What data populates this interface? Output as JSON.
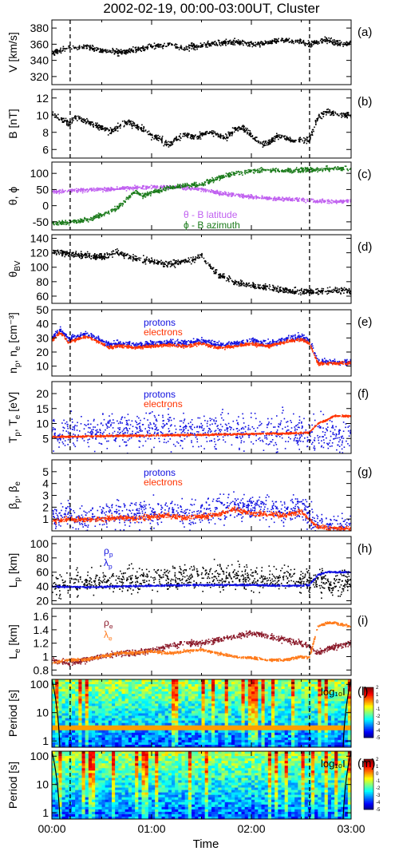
{
  "figure": {
    "title": "2002-02-19, 00:00-03:00UT, Cluster",
    "xlabel": "Time",
    "xticks": [
      "00:00",
      "01:00",
      "02:00",
      "03:00"
    ],
    "xrange_minutes": [
      0,
      180
    ],
    "vlines_minutes": [
      11,
      155
    ],
    "colors": {
      "black": "#000000",
      "purple": "#c060f0",
      "green": "#1a7a1a",
      "blue": "#1010e0",
      "red": "#ff3300",
      "maroon": "#8b1a2a",
      "orange": "#ff7a1a"
    }
  },
  "chart_data": [
    {
      "id": "a",
      "type": "scatter",
      "panel_label": "(a)",
      "ylabel": "V [km/s]",
      "ylim": [
        310,
        390
      ],
      "yticks": [
        320,
        340,
        360,
        380
      ],
      "series": [
        {
          "color": "black",
          "x": [
            0,
            5,
            10,
            15,
            20,
            25,
            30,
            35,
            40,
            45,
            50,
            55,
            60,
            65,
            70,
            75,
            80,
            85,
            90,
            95,
            100,
            105,
            110,
            115,
            120,
            125,
            130,
            135,
            140,
            145,
            150,
            155,
            160,
            165,
            170,
            175,
            180
          ],
          "y": [
            349,
            352,
            355,
            356,
            357,
            355,
            351,
            352,
            350,
            351,
            353,
            355,
            358,
            358,
            360,
            357,
            355,
            357,
            358,
            360,
            361,
            362,
            363,
            362,
            360,
            361,
            362,
            364,
            365,
            364,
            363,
            360,
            362,
            366,
            362,
            361,
            360
          ],
          "noise": 2.5
        }
      ],
      "legend": []
    },
    {
      "id": "b",
      "type": "scatter",
      "panel_label": "(b)",
      "ylabel": "B [nT]",
      "ylim": [
        5,
        13
      ],
      "yticks": [
        6,
        8,
        10,
        12
      ],
      "series": [
        {
          "color": "black",
          "x": [
            0,
            5,
            10,
            15,
            20,
            25,
            30,
            35,
            40,
            45,
            50,
            55,
            60,
            65,
            70,
            75,
            80,
            85,
            90,
            95,
            100,
            105,
            110,
            115,
            120,
            125,
            130,
            135,
            140,
            145,
            150,
            155,
            160,
            165,
            170,
            175,
            180
          ],
          "y": [
            10.2,
            9.6,
            9.0,
            9.8,
            9.3,
            8.9,
            8.6,
            8.1,
            8.6,
            9.2,
            8.8,
            8.3,
            7.6,
            7.3,
            6.5,
            7.2,
            7.8,
            7.4,
            7.7,
            8.0,
            7.6,
            7.3,
            8.3,
            8.6,
            7.6,
            6.8,
            6.6,
            7.6,
            7.4,
            7.0,
            7.1,
            7.1,
            9.8,
            10.4,
            10.3,
            10.0,
            10.0
          ],
          "noise": 0.25
        }
      ],
      "legend": []
    },
    {
      "id": "c",
      "type": "scatter",
      "panel_label": "(c)",
      "ylabel": "θ, ϕ",
      "ylim": [
        -75,
        135
      ],
      "yticks": [
        -50,
        0,
        50,
        100
      ],
      "series": [
        {
          "color": "purple",
          "x": [
            0,
            10,
            20,
            30,
            40,
            50,
            60,
            70,
            80,
            90,
            100,
            110,
            120,
            130,
            140,
            150,
            160,
            170,
            180
          ],
          "y": [
            42,
            46,
            48,
            50,
            53,
            56,
            58,
            58,
            56,
            50,
            40,
            33,
            28,
            23,
            20,
            18,
            14,
            12,
            15
          ],
          "noise": 4
        },
        {
          "color": "green",
          "x": [
            0,
            10,
            20,
            30,
            40,
            45,
            50,
            55,
            60,
            70,
            80,
            90,
            100,
            110,
            120,
            130,
            140,
            150,
            160,
            170,
            180
          ],
          "y": [
            -55,
            -52,
            -45,
            -30,
            -5,
            20,
            45,
            30,
            40,
            55,
            62,
            65,
            85,
            100,
            108,
            110,
            108,
            110,
            112,
            115,
            116
          ],
          "noise": 5
        }
      ],
      "legend": [
        {
          "text": "θ - B latitude",
          "color": "purple"
        },
        {
          "text": "ϕ - B azimuth",
          "color": "green"
        }
      ]
    },
    {
      "id": "d",
      "type": "scatter",
      "panel_label": "(d)",
      "ylabel": "θ_BV",
      "ylim": [
        50,
        145
      ],
      "yticks": [
        60,
        80,
        100,
        120,
        140
      ],
      "series": [
        {
          "color": "black",
          "x": [
            0,
            10,
            20,
            30,
            40,
            50,
            60,
            70,
            80,
            90,
            100,
            110,
            120,
            130,
            140,
            150,
            160,
            170,
            180
          ],
          "y": [
            122,
            118,
            116,
            114,
            120,
            112,
            108,
            104,
            108,
            115,
            90,
            80,
            74,
            72,
            68,
            66,
            66,
            68,
            66
          ],
          "noise": 3
        }
      ],
      "legend": []
    },
    {
      "id": "e",
      "type": "scatter",
      "panel_label": "(e)",
      "ylabel": "n_p, n_e [cm⁻³]",
      "ylim": [
        3,
        50
      ],
      "yticks": [
        10,
        20,
        30,
        40,
        50
      ],
      "series": [
        {
          "color": "blue",
          "x": [
            0,
            5,
            10,
            15,
            20,
            25,
            30,
            35,
            40,
            45,
            50,
            60,
            70,
            80,
            90,
            100,
            110,
            120,
            130,
            140,
            150,
            155,
            160,
            165,
            170,
            175,
            180
          ],
          "y": [
            30,
            36,
            29,
            31,
            33,
            31,
            28,
            25,
            26,
            26,
            25,
            26,
            27,
            26,
            28,
            25,
            26,
            28,
            26,
            29,
            31,
            28,
            14,
            13,
            13,
            13,
            13
          ],
          "noise": 1.5
        },
        {
          "color": "red",
          "x": [
            0,
            5,
            10,
            15,
            20,
            25,
            30,
            35,
            40,
            45,
            50,
            60,
            70,
            80,
            90,
            100,
            110,
            120,
            130,
            140,
            150,
            155,
            160,
            165,
            170,
            175,
            180
          ],
          "y": [
            28,
            34,
            27,
            29,
            31,
            29,
            26,
            23,
            24,
            24,
            23,
            24,
            25,
            24,
            26,
            23,
            24,
            26,
            24,
            27,
            29,
            26,
            12,
            12,
            12,
            12,
            12
          ],
          "noise": 0.8
        }
      ],
      "legend": [
        {
          "text": "protons",
          "color": "blue"
        },
        {
          "text": "electrons",
          "color": "red"
        }
      ]
    },
    {
      "id": "f",
      "type": "scatter",
      "panel_label": "(f)",
      "ylabel": "T_p, T_e [eV]",
      "ylim": [
        0,
        24
      ],
      "yticks": [
        5,
        10,
        15,
        20
      ],
      "series": [
        {
          "color": "blue",
          "x": [
            0,
            30,
            60,
            90,
            120,
            150,
            160,
            180
          ],
          "y": [
            7,
            7,
            8,
            8,
            7,
            7,
            6,
            6
          ],
          "noise": 4
        },
        {
          "color": "red",
          "x": [
            0,
            30,
            60,
            90,
            120,
            150,
            155,
            160,
            165,
            170,
            180
          ],
          "y": [
            5.5,
            5.8,
            6,
            6.2,
            6.5,
            6.8,
            7,
            10,
            11,
            12.5,
            12.5
          ],
          "noise": 0.2
        }
      ],
      "legend": [
        {
          "text": "protons",
          "color": "blue"
        },
        {
          "text": "electrons",
          "color": "red"
        }
      ]
    },
    {
      "id": "g",
      "type": "scatter",
      "panel_label": "(g)",
      "ylabel": "β_p, β_e",
      "ylim": [
        0,
        6
      ],
      "yticks": [
        1,
        2,
        3,
        4,
        5
      ],
      "series": [
        {
          "color": "blue",
          "x": [
            0,
            10,
            20,
            30,
            40,
            50,
            60,
            70,
            80,
            90,
            100,
            110,
            120,
            130,
            140,
            150,
            160,
            170,
            180
          ],
          "y": [
            1.1,
            1.4,
            1.1,
            1.3,
            1.5,
            1.3,
            1.6,
            1.7,
            1.4,
            1.5,
            1.8,
            2.1,
            1.9,
            1.8,
            1.7,
            1.9,
            0.4,
            0.3,
            0.3
          ],
          "noise": 0.8
        },
        {
          "color": "red",
          "x": [
            0,
            10,
            20,
            30,
            40,
            50,
            60,
            70,
            80,
            90,
            100,
            110,
            120,
            130,
            140,
            150,
            160,
            170,
            180
          ],
          "y": [
            0.8,
            1.0,
            0.9,
            1.0,
            1.1,
            1.0,
            1.2,
            1.3,
            1.1,
            1.2,
            1.4,
            1.8,
            1.5,
            1.4,
            1.3,
            1.6,
            0.3,
            0.2,
            0.2
          ],
          "noise": 0.15
        }
      ],
      "legend": [
        {
          "text": "protons",
          "color": "blue"
        },
        {
          "text": "electrons",
          "color": "red"
        }
      ]
    },
    {
      "id": "h",
      "type": "scatter",
      "panel_label": "(h)",
      "ylabel": "L_p [km]",
      "ylim": [
        15,
        110
      ],
      "yticks": [
        20,
        40,
        60,
        80,
        100
      ],
      "series": [
        {
          "color": "black",
          "x": [
            0,
            20,
            40,
            60,
            80,
            100,
            120,
            140,
            150,
            160,
            180
          ],
          "y": [
            42,
            45,
            48,
            50,
            52,
            54,
            52,
            50,
            48,
            45,
            45
          ],
          "noise": 12
        },
        {
          "color": "blue",
          "x": [
            0,
            20,
            40,
            60,
            80,
            100,
            120,
            140,
            150,
            155,
            160,
            165,
            180
          ],
          "y": [
            40,
            39,
            40,
            41,
            42,
            42,
            42,
            41,
            41,
            42,
            56,
            60,
            60
          ],
          "noise": 0.8
        }
      ],
      "legend": [
        {
          "text": "ρ_p",
          "color": "blue"
        },
        {
          "text": "λ_p",
          "color": "blue"
        }
      ]
    },
    {
      "id": "i",
      "type": "scatter",
      "panel_label": "(i)",
      "ylabel": "L_e [km]",
      "ylim": [
        0.72,
        1.72
      ],
      "yticks": [
        0.8,
        1.0,
        1.2,
        1.4,
        1.6
      ],
      "series": [
        {
          "color": "maroon",
          "x": [
            0,
            10,
            20,
            30,
            40,
            50,
            60,
            70,
            80,
            90,
            100,
            110,
            120,
            130,
            140,
            150,
            155,
            160,
            170,
            180
          ],
          "y": [
            0.95,
            0.9,
            0.95,
            1.0,
            1.05,
            1.05,
            1.1,
            1.15,
            1.2,
            1.2,
            1.25,
            1.3,
            1.35,
            1.3,
            1.25,
            1.2,
            1.15,
            1.05,
            1.15,
            1.2
          ],
          "noise": 0.03
        },
        {
          "color": "orange",
          "x": [
            0,
            10,
            20,
            30,
            40,
            50,
            60,
            70,
            80,
            90,
            100,
            110,
            120,
            130,
            140,
            150,
            155,
            160,
            165,
            170,
            180
          ],
          "y": [
            0.9,
            0.95,
            0.95,
            1.0,
            1.05,
            1.05,
            1.08,
            1.05,
            1.08,
            1.1,
            1.05,
            1.0,
            0.98,
            0.95,
            0.95,
            1.0,
            0.98,
            1.45,
            1.5,
            1.5,
            1.45
          ],
          "noise": 0.015
        }
      ],
      "legend": [
        {
          "text": "ρ_e",
          "color": "maroon"
        },
        {
          "text": "λ_e",
          "color": "orange"
        }
      ]
    },
    {
      "id": "l",
      "type": "heatmap",
      "panel_label": "(l)",
      "ylabel": "Period [s]",
      "yscale": "log",
      "ylim": [
        0.6,
        150
      ],
      "yticks": [
        1,
        10,
        100
      ],
      "yticklabels": [
        "1",
        "10",
        "100"
      ],
      "annotation": "log₁₀I",
      "colorbar_ticks": [
        "-5",
        "-4",
        "-3",
        "-2",
        "-1",
        "0",
        "1",
        "2"
      ]
    },
    {
      "id": "m",
      "type": "heatmap",
      "panel_label": "(m)",
      "ylabel": "Period [s]",
      "yscale": "log",
      "ylim": [
        0.6,
        150
      ],
      "yticks": [
        1,
        10,
        100
      ],
      "yticklabels": [
        "1",
        "10",
        "100"
      ],
      "annotation": "log₁₀I",
      "colorbar_ticks": [
        "-5",
        "-4",
        "-3",
        "-2",
        "-1",
        "0",
        "1",
        "2"
      ]
    }
  ]
}
